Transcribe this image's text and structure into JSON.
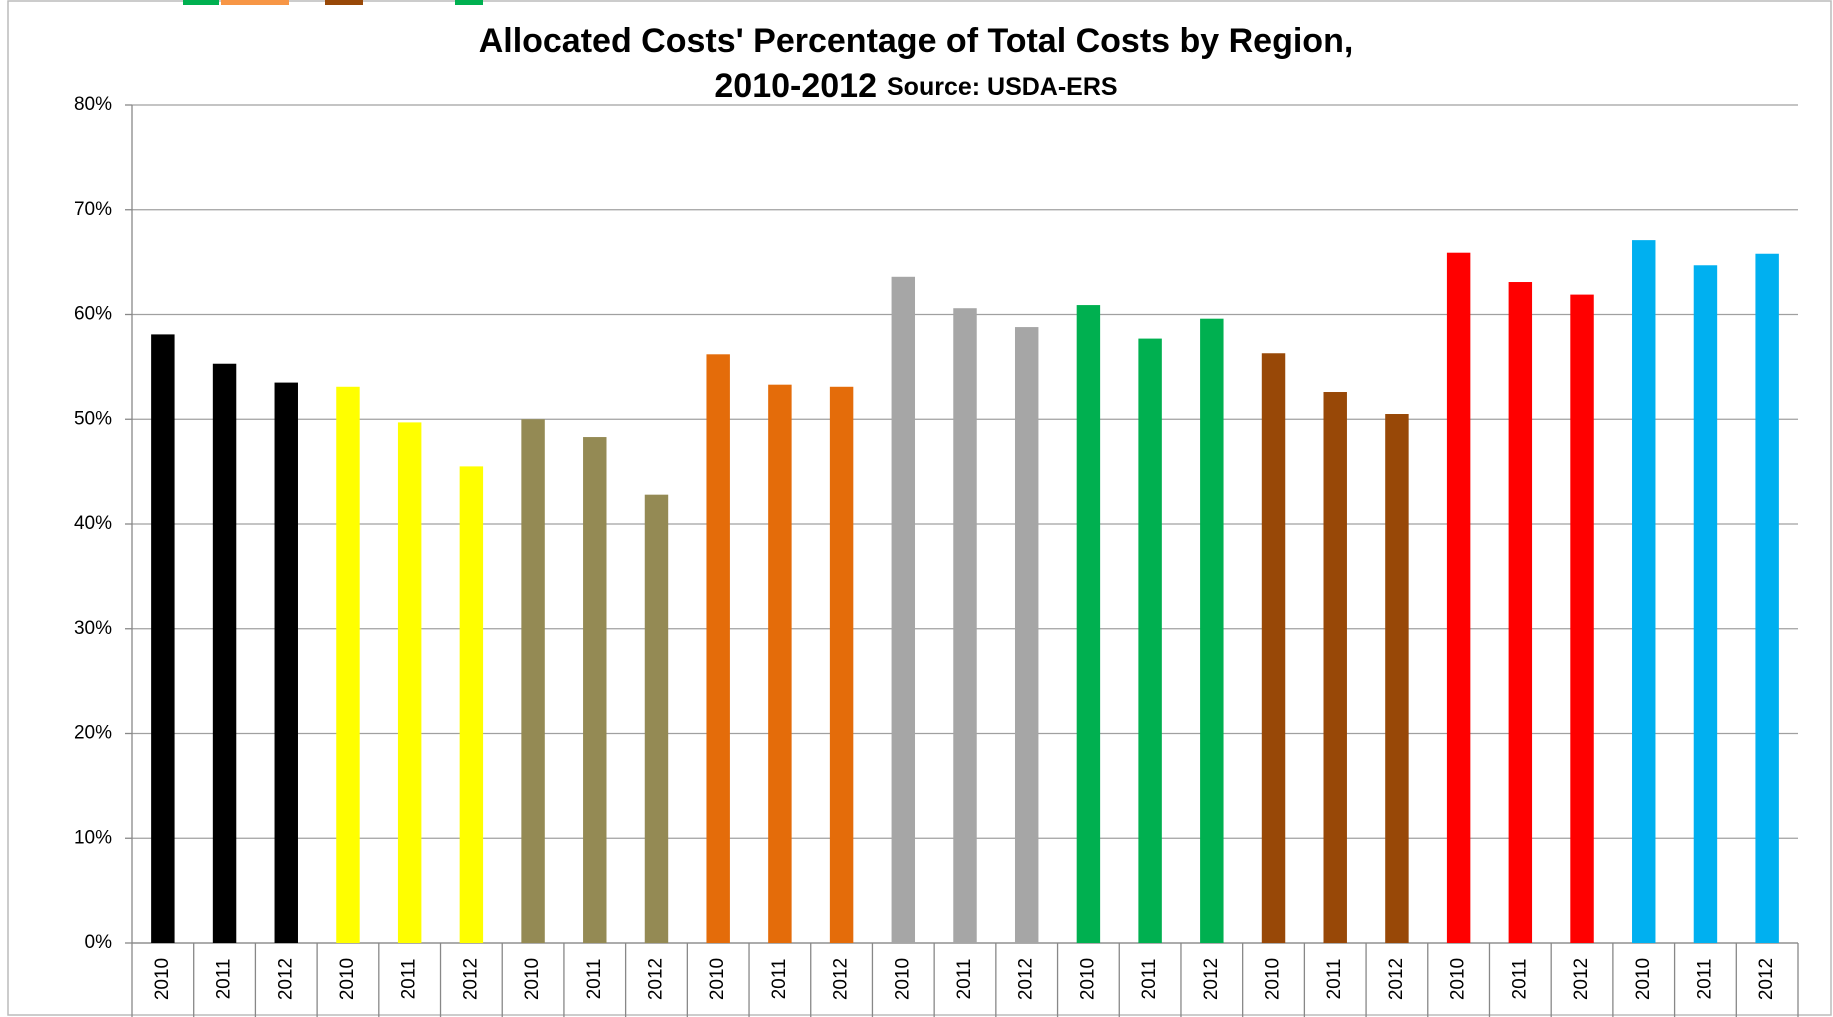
{
  "chart_data": {
    "type": "bar",
    "title": [
      "Allocated Costs' Percentage of Total Costs by Region,",
      "2010-2012"
    ],
    "subtitle": "Source: USDA-ERS",
    "categories": [
      "2010",
      "2011",
      "2012",
      "2010",
      "2011",
      "2012",
      "2010",
      "2011",
      "2012",
      "2010",
      "2011",
      "2012",
      "2010",
      "2011",
      "2012",
      "2010",
      "2011",
      "2012",
      "2010",
      "2011",
      "2012",
      "2010",
      "2011",
      "2012",
      "2010",
      "2011",
      "2012"
    ],
    "values": [
      58.1,
      55.3,
      53.5,
      53.1,
      49.7,
      45.5,
      50.0,
      48.3,
      42.8,
      56.2,
      53.3,
      53.1,
      63.6,
      60.6,
      58.8,
      60.9,
      57.7,
      59.6,
      56.3,
      52.6,
      50.5,
      65.9,
      63.1,
      61.9,
      67.1,
      64.7,
      65.8
    ],
    "colors": [
      "#000000",
      "#000000",
      "#000000",
      "#ffff00",
      "#ffff00",
      "#ffff00",
      "#948a54",
      "#948a54",
      "#948a54",
      "#e46c0a",
      "#e46c0a",
      "#e46c0a",
      "#a6a6a6",
      "#a6a6a6",
      "#a6a6a6",
      "#00b050",
      "#00b050",
      "#00b050",
      "#984807",
      "#984807",
      "#984807",
      "#ff0000",
      "#ff0000",
      "#ff0000",
      "#00b0f0",
      "#00b0f0",
      "#00b0f0"
    ],
    "ylim": [
      0,
      80
    ],
    "yticks": [
      {
        "value": 0,
        "label": "0%"
      },
      {
        "value": 10,
        "label": "10%"
      },
      {
        "value": 20,
        "label": "20%"
      },
      {
        "value": 30,
        "label": "30%"
      },
      {
        "value": 40,
        "label": "40%"
      },
      {
        "value": 50,
        "label": "50%"
      },
      {
        "value": 60,
        "label": "60%"
      },
      {
        "value": 70,
        "label": "70%"
      },
      {
        "value": 80,
        "label": "80%"
      }
    ],
    "grid": true
  }
}
